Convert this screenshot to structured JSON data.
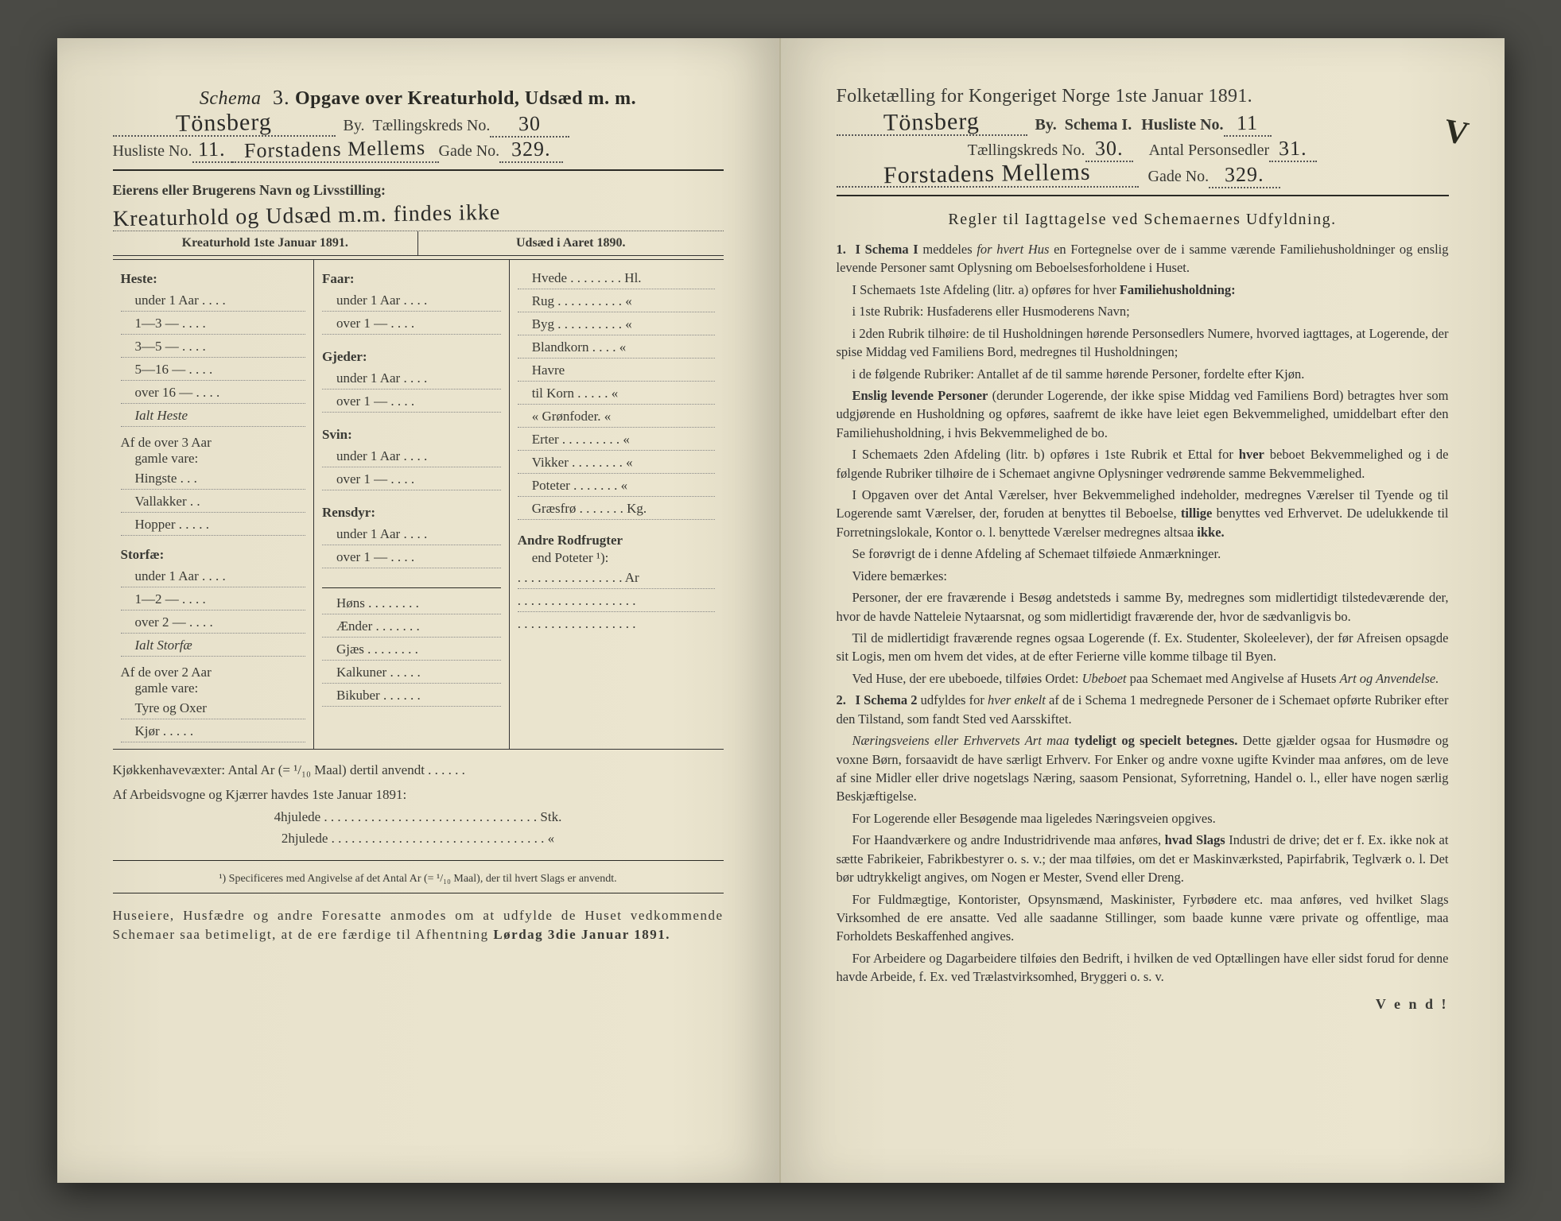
{
  "left": {
    "schemaLabel": "Schema",
    "schemaNo": "3.",
    "title": "Opgave over Kreaturhold, Udsæd m. m.",
    "byLabel": "By.",
    "cityHand": "Tönsberg",
    "kredsLabel": "Tællingskreds No.",
    "kredsHand": "30",
    "huslisteLabel": "Husliste No.",
    "huslisteHand": "11.",
    "streetHand": "Forstadens Mellems",
    "gadeLabel": "Gade No.",
    "gadeHand": "329.",
    "ownerLabel": "Eierens eller Brugerens Navn og Livsstilling:",
    "ownerHand": "Kreaturhold og Udsæd m.m. findes ikke",
    "kreaturHead": "Kreaturhold 1ste Januar 1891.",
    "udsaedHead": "Udsæd i Aaret 1890.",
    "col1": {
      "heste": "Heste:",
      "hesteRows": [
        "under 1 Aar . . . .",
        "1—3   —  . . . .",
        "3—5   —  . . . .",
        "5—16  —  . . . .",
        "over 16 —  . . . ."
      ],
      "ialtHeste": "Ialt Heste",
      "over3": "Af de over 3 Aar",
      "gamle": "gamle vare:",
      "over3Rows": [
        "Hingste . . .",
        "Vallakker . .",
        "Hopper . . . . ."
      ],
      "storfae": "Storfæ:",
      "storfaeRows": [
        "under 1 Aar . . . .",
        "1—2   —  . . . .",
        "over 2  —  . . . ."
      ],
      "ialtStorfae": "Ialt Storfæ",
      "over2": "Af de over 2 Aar",
      "gamle2": "gamle vare:",
      "over2Rows": [
        "Tyre og Oxer",
        "Kjør . . . . ."
      ]
    },
    "col2": {
      "faar": "Faar:",
      "faarRows": [
        "under 1 Aar . . . .",
        "over 1  —  . . . ."
      ],
      "gjeder": "Gjeder:",
      "gjederRows": [
        "under 1 Aar . . . .",
        "over 1  —  . . . ."
      ],
      "svin": "Svin:",
      "svinRows": [
        "under 1 Aar . . . .",
        "over 1  —  . . . ."
      ],
      "rensdyr": "Rensdyr:",
      "rensdyrRows": [
        "under 1 Aar . . . .",
        "over 1  —  . . . ."
      ],
      "rest": [
        "Høns . . . . . . . .",
        "Ænder . . . . . . .",
        "Gjæs . . . . . . . .",
        "Kalkuner . . . . .",
        "Bikuber . . . . . ."
      ]
    },
    "col3": {
      "rows": [
        "Hvede . . . . . . . . Hl.",
        "Rug . . . . . . . . . .  «",
        "Byg . . . . . . . . . .  «",
        "Blandkorn . . . .  «",
        "Havre",
        "   til Korn . . . . .  «",
        "   « Grønfoder.  «",
        "Erter . . . . . . . . .  «",
        "Vikker . . . . . . . .  «",
        "Poteter . . . . . . .  «",
        "Græsfrø . . . . . . . Kg."
      ],
      "andre": "Andre Rodfrugter",
      "andre2": "end Poteter ¹):",
      "arLabel": ". . . . . . . . . . . . . . . . Ar",
      "dots": ". . . . . . . . . . . . . . . . . ."
    },
    "kjokken": "Kjøkkenhavevæxter:  Antal Ar (= ¹/₁₀ Maal) dertil anvendt . . . . . .",
    "arbeids": "Af Arbeidsvogne og Kjærrer havdes 1ste Januar 1891:",
    "hjul4": "4hjulede . . . . . . . . . . . . . . . . . . . . . . . . . . . . . . . . Stk.",
    "hjul2": "2hjulede . . . . . . . . . . . . . . . . . . . . . . . . . . . . . . . .   «",
    "footnote": "¹) Specificeres med Angivelse af det Antal Ar (= ¹/₁₀ Maal), der til hvert Slags er anvendt.",
    "bottom": "Huseiere, Husfædre og andre Foresatte anmodes om at udfylde de Huset vedkommende Schemaer saa betimeligt, at de ere færdige til Afhentning",
    "bottomBold": "Lørdag 3die Januar 1891."
  },
  "right": {
    "title": "Folketælling for Kongeriget Norge 1ste Januar 1891.",
    "cityHand": "Tönsberg",
    "byLabel": "By.",
    "schemaLabel": "Schema I.",
    "huslisteLabel": "Husliste No.",
    "huslisteHand": "11",
    "kredsLabel": "Tællingskreds No.",
    "kredsHand": "30.",
    "antalLabel": "Antal Personsedler",
    "antalHand": "31.",
    "streetHand": "Forstadens Mellems",
    "gadeLabel": "Gade No.",
    "gadeHand": "329.",
    "rulesTitle": "Regler til Iagttagelse ved Schemaernes Udfyldning.",
    "rules": [
      {
        "n": "1.",
        "html": "<strong>I Schema I</strong> meddeles <span class='it'>for hvert Hus</span> en Fortegnelse over de i samme værende Familiehusholdninger og enslig levende Personer samt Oplysning om Beboelsesforholdene i Huset."
      },
      {
        "html": "I Schemaets 1ste Afdeling (litr. a) opføres for hver <strong>Familiehusholdning:</strong>"
      },
      {
        "html": "i 1ste Rubrik: Husfaderens eller Husmoderens Navn;"
      },
      {
        "html": "i 2den Rubrik tilhøire: de til Husholdningen hørende Personsedlers Numere, hvorved iagttages, at Logerende, der spise Middag ved Familiens Bord, medregnes til Husholdningen;"
      },
      {
        "html": "i de følgende Rubriker: Antallet af de til samme hørende Personer, fordelte efter Kjøn."
      },
      {
        "html": "<strong>Enslig levende Personer</strong> (derunder Logerende, der ikke spise Middag ved Familiens Bord) betragtes hver som udgjørende en Husholdning og opføres, saafremt de ikke have leiet egen Bekvemmelighed, umiddelbart efter den Familiehusholdning, i hvis Bekvemmelighed de bo."
      },
      {
        "html": "I Schemaets 2den Afdeling (litr. b) opføres i 1ste Rubrik et Ettal for <strong>hver</strong> beboet Bekvemmelighed og i de følgende Rubriker tilhøire de i Schemaet angivne Oplysninger vedrørende samme Bekvemmelighed."
      },
      {
        "html": "I Opgaven over det Antal Værelser, hver Bekvemmelighed indeholder, medregnes Værelser til Tyende og til Logerende samt Værelser, der, foruden at benyttes til Beboelse, <strong>tillige</strong> benyttes ved Erhvervet. De udelukkende til Forretningslokale, Kontor o. l. benyttede Værelser medregnes altsaa <strong>ikke.</strong>"
      },
      {
        "html": "Se forøvrigt de i denne Afdeling af Schemaet tilføiede Anmærkninger."
      },
      {
        "html": "Videre bemærkes:"
      },
      {
        "html": "Personer, der ere fraværende i Besøg andetsteds i samme By, medregnes som midlertidigt tilstedeværende der, hvor de havde Natteleie Nytaarsnat, og som midlertidigt fraværende der, hvor de sædvanligvis bo."
      },
      {
        "html": "Til de midlertidigt fraværende regnes ogsaa Logerende (f. Ex. Studenter, Skoleelever), der før Afreisen opsagde sit Logis, men om hvem det vides, at de efter Ferierne ville komme tilbage til Byen."
      },
      {
        "html": "Ved Huse, der ere ubeboede, tilføies Ordet: <span class='it'>Ubeboet</span> paa Schemaet med Angivelse af Husets <span class='it'>Art og Anvendelse.</span>"
      },
      {
        "n": "2.",
        "html": "<strong>I Schema 2</strong> udfyldes for <span class='it'>hver enkelt</span> af de i Schema 1 medregnede Personer de i Schemaet opførte Rubriker efter den Tilstand, som fandt Sted ved Aarsskiftet."
      },
      {
        "html": "<span class='it'>Næringsveiens eller Erhvervets Art maa</span> <strong>tydeligt og specielt betegnes.</strong> Dette gjælder ogsaa for Husmødre og voxne Børn, forsaavidt de have særligt Erhverv. For Enker og andre voxne ugifte Kvinder maa anføres, om de leve af sine Midler eller drive nogetslags Næring, saasom Pensionat, Syforretning, Handel o. l., eller have nogen særlig Beskjæftigelse."
      },
      {
        "html": "For Logerende eller Besøgende maa ligeledes Næringsveien opgives."
      },
      {
        "html": "For Haandværkere og andre Industridrivende maa anføres, <strong>hvad Slags</strong> Industri de drive; det er f. Ex. ikke nok at sætte Fabrikeier, Fabrikbestyrer o. s. v.; der maa tilføies, om det er Maskinværksted, Papirfabrik, Teglværk o. l. Det bør udtrykkeligt angives, om Nogen er Mester, Svend eller Dreng."
      },
      {
        "html": "For Fuldmægtige, Kontorister, Opsynsmænd, Maskinister, Fyrbødere etc. maa anføres, ved hvilket Slags Virksomhed de ere ansatte. Ved alle saadanne Stillinger, som baade kunne være private og offentlige, maa Forholdets Beskaffenhed angives."
      },
      {
        "html": "For Arbeidere og Dagarbeidere tilføies den Bedrift, i hvilken de ved Optællingen have eller sidst forud for denne havde Arbeide, f. Ex. ved Trælastvirksomhed, Bryggeri o. s. v."
      }
    ],
    "vend": "V e n d !"
  }
}
